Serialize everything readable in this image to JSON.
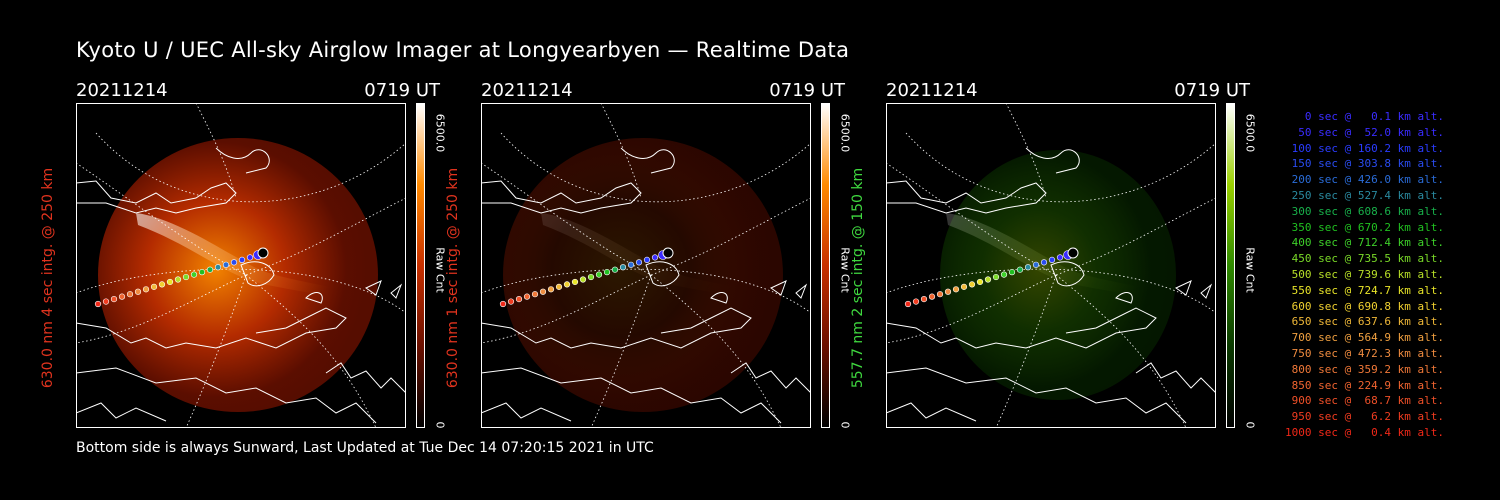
{
  "title": "Kyoto U / UEC All-sky Airglow Imager at Longyearbyen — Realtime Data",
  "footer": "Bottom side is always Sunward, Last Updated at Tue Dec 14 07:20:15 2021 in UTC",
  "panels": [
    {
      "date": "20211214",
      "time": "0719 UT",
      "ylabel": "630.0 nm 4 sec intg. @ 250 km",
      "label_color": "#e0331e",
      "cbar_max": "6500.0",
      "cbar_min": "0",
      "cbar_unit": "Raw Cnt",
      "colormap": [
        "#000000",
        "#6b1000",
        "#c83000",
        "#ff8a00",
        "#ffffff"
      ],
      "intensity": 1.0
    },
    {
      "date": "20211214",
      "time": "0719 UT",
      "ylabel": "630.0 nm 1 sec intg. @ 250 km",
      "label_color": "#e0331e",
      "cbar_max": "6500.0",
      "cbar_min": "0",
      "cbar_unit": "Raw Cnt",
      "colormap": [
        "#000000",
        "#6b1000",
        "#c83000",
        "#ff8a00",
        "#ffffff"
      ],
      "intensity": 0.18
    },
    {
      "date": "20211214",
      "time": "0719 UT",
      "ylabel": "557.7 nm 2 sec intg. @ 150 km",
      "label_color": "#3fd83f",
      "cbar_max": "6500.0",
      "cbar_min": "0",
      "cbar_unit": "Raw Cnt",
      "colormap": [
        "#000000",
        "#0a3a00",
        "#2f8a00",
        "#9bd000",
        "#ffffff"
      ],
      "intensity": 0.35
    }
  ],
  "legend": [
    {
      "text": "   0 sec @   0.1 km alt.",
      "color": "#3a2cff"
    },
    {
      "text": "  50 sec @  52.0 km alt.",
      "color": "#3a2cff"
    },
    {
      "text": " 100 sec @ 160.2 km alt.",
      "color": "#2a3cff"
    },
    {
      "text": " 150 sec @ 303.8 km alt.",
      "color": "#2a4cf0"
    },
    {
      "text": " 200 sec @ 426.0 km alt.",
      "color": "#2a6cd8"
    },
    {
      "text": " 250 sec @ 527.4 km alt.",
      "color": "#2a8aa0"
    },
    {
      "text": " 300 sec @ 608.6 km alt.",
      "color": "#18b04a"
    },
    {
      "text": " 350 sec @ 670.2 km alt.",
      "color": "#20c020"
    },
    {
      "text": " 400 sec @ 712.4 km alt.",
      "color": "#3ed02a"
    },
    {
      "text": " 450 sec @ 735.5 km alt.",
      "color": "#7ada28"
    },
    {
      "text": " 500 sec @ 739.6 km alt.",
      "color": "#b8e028"
    },
    {
      "text": " 550 sec @ 724.7 km alt.",
      "color": "#e8e428"
    },
    {
      "text": " 600 sec @ 690.8 km alt.",
      "color": "#f0d030"
    },
    {
      "text": " 650 sec @ 637.6 km alt.",
      "color": "#f0b838"
    },
    {
      "text": " 700 sec @ 564.9 km alt.",
      "color": "#f0a040"
    },
    {
      "text": " 750 sec @ 472.3 km alt.",
      "color": "#f08c40"
    },
    {
      "text": " 800 sec @ 359.2 km alt.",
      "color": "#f07838"
    },
    {
      "text": " 850 sec @ 224.9 km alt.",
      "color": "#f06430"
    },
    {
      "text": " 900 sec @  68.7 km alt.",
      "color": "#f05028"
    },
    {
      "text": " 950 sec @   6.2 km alt.",
      "color": "#f03c20"
    },
    {
      "text": "1000 sec @   0.4 km alt.",
      "color": "#f02818"
    }
  ],
  "trajectory_colors": [
    "#3a2cff",
    "#3a2cff",
    "#2a3cff",
    "#2a4cf0",
    "#2a6cd8",
    "#2a8aa0",
    "#18b04a",
    "#20c020",
    "#3ed02a",
    "#7ada28",
    "#b8e028",
    "#e8e428",
    "#f0d030",
    "#f0b838",
    "#f0a040",
    "#f08c40",
    "#f07838",
    "#f06430",
    "#f05028",
    "#f03c20",
    "#f02818"
  ]
}
